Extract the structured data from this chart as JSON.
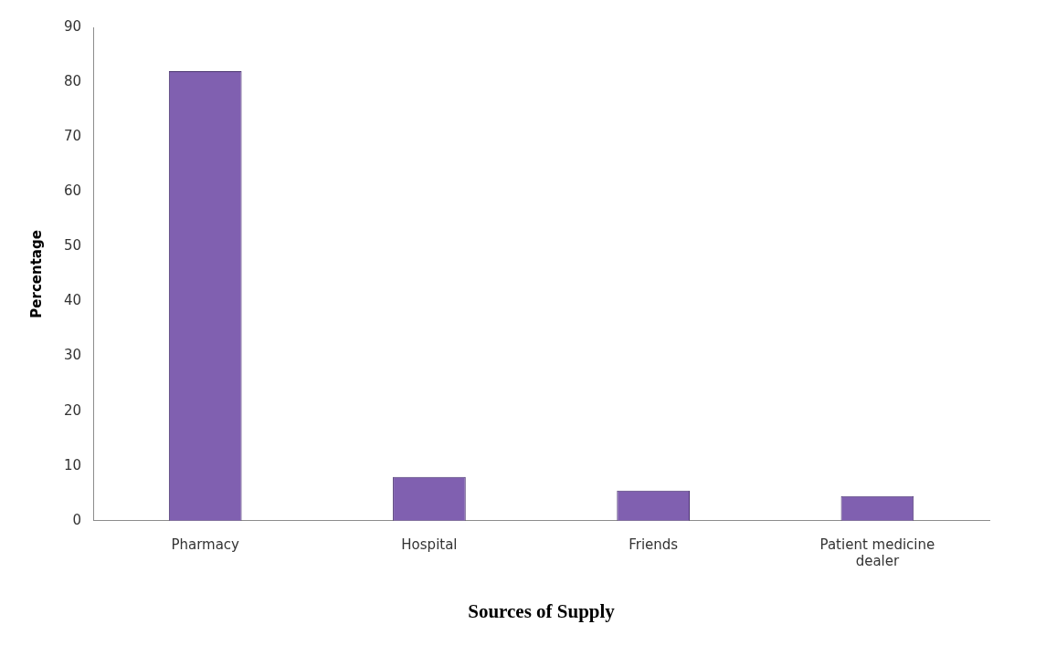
{
  "chart_data": {
    "type": "bar",
    "xlabel": "Sources of Supply",
    "ylabel": "Percentage",
    "categories": [
      "Pharmacy",
      "Hospital",
      "Friends",
      "Patient medicine dealer"
    ],
    "values": [
      82,
      8,
      5.5,
      4.5
    ],
    "color": "#8060b0",
    "ylim": [
      0,
      90
    ],
    "yticks": [
      0,
      10,
      20,
      30,
      40,
      50,
      60,
      70,
      80,
      90
    ],
    "grid": false,
    "legend": false
  }
}
